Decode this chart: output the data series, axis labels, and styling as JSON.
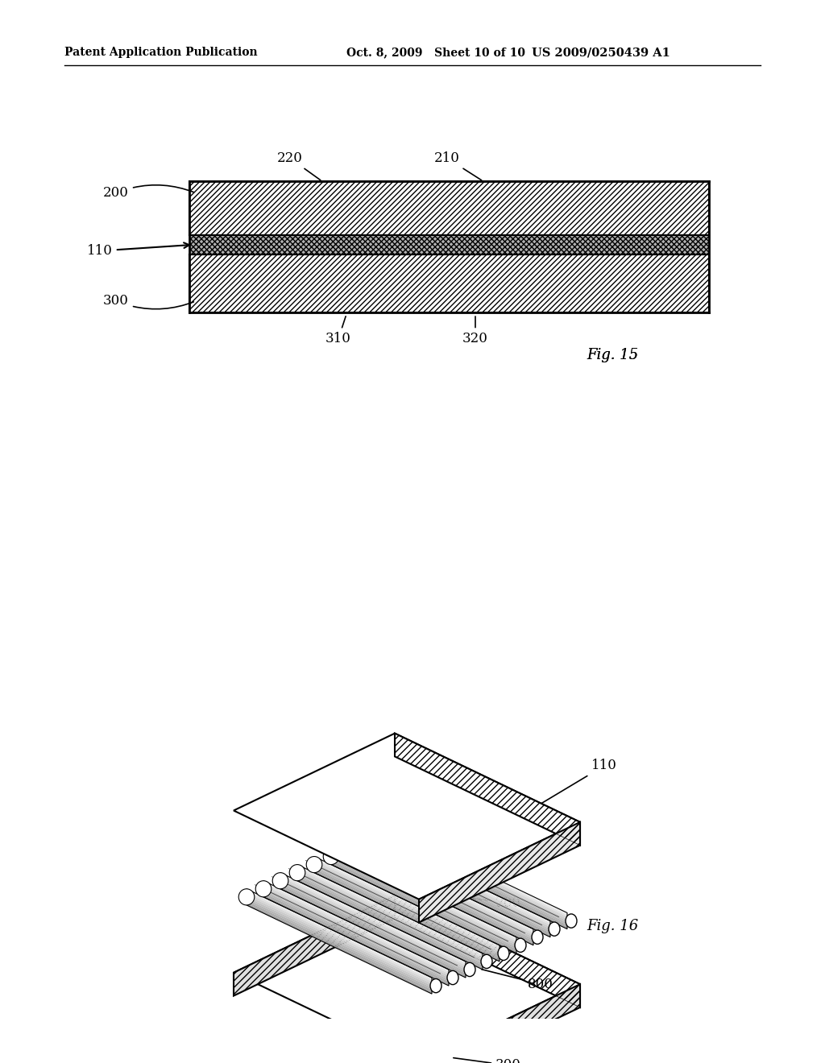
{
  "bg_color": "#ffffff",
  "header_left": "Patent Application Publication",
  "header_mid": "Oct. 8, 2009   Sheet 10 of 10",
  "header_right": "US 2009/0250439 A1",
  "fig15_label": "Fig. 15",
  "fig16_label": "Fig. 16"
}
